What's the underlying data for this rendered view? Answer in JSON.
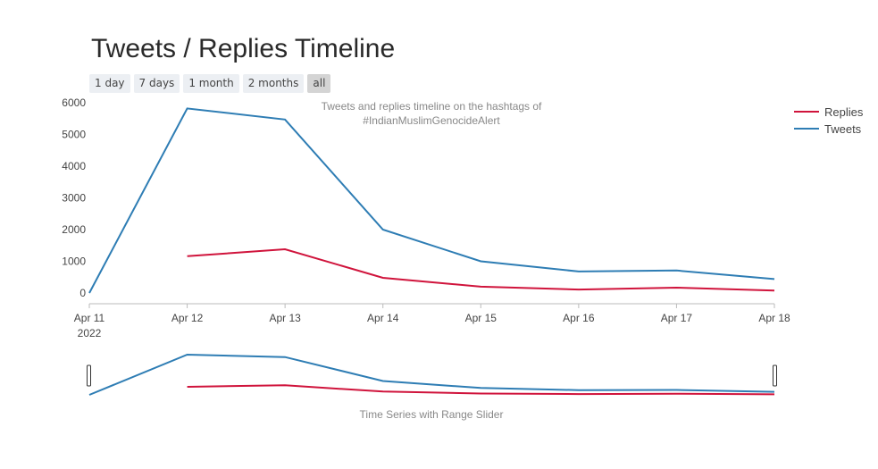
{
  "title": "Tweets / Replies Timeline",
  "range_buttons": [
    "1 day",
    "7 days",
    "1 month",
    "2 months",
    "all"
  ],
  "active_range": "all",
  "annotation_lines": [
    "Tweets and replies timeline on the hashtags of",
    "#IndianMuslimGenocideAlert"
  ],
  "slider_caption": "Time Series with Range Slider",
  "colors": {
    "Replies": "#d0143c",
    "Tweets": "#2e7db4"
  },
  "chart_data": {
    "type": "line",
    "x": [
      "Apr 11",
      "Apr 12",
      "Apr 13",
      "Apr 14",
      "Apr 15",
      "Apr 16",
      "Apr 17",
      "Apr 18"
    ],
    "x_year_label": "2022",
    "ylim": [
      0,
      6000
    ],
    "yticks": [
      0,
      1000,
      2000,
      3000,
      4000,
      5000,
      6000
    ],
    "grid": false,
    "legend_position": "top-right",
    "series": [
      {
        "name": "Replies",
        "values": [
          null,
          1160,
          1380,
          480,
          200,
          110,
          170,
          80
        ]
      },
      {
        "name": "Tweets",
        "values": [
          0,
          5820,
          5470,
          2000,
          1000,
          680,
          710,
          440
        ]
      }
    ]
  }
}
